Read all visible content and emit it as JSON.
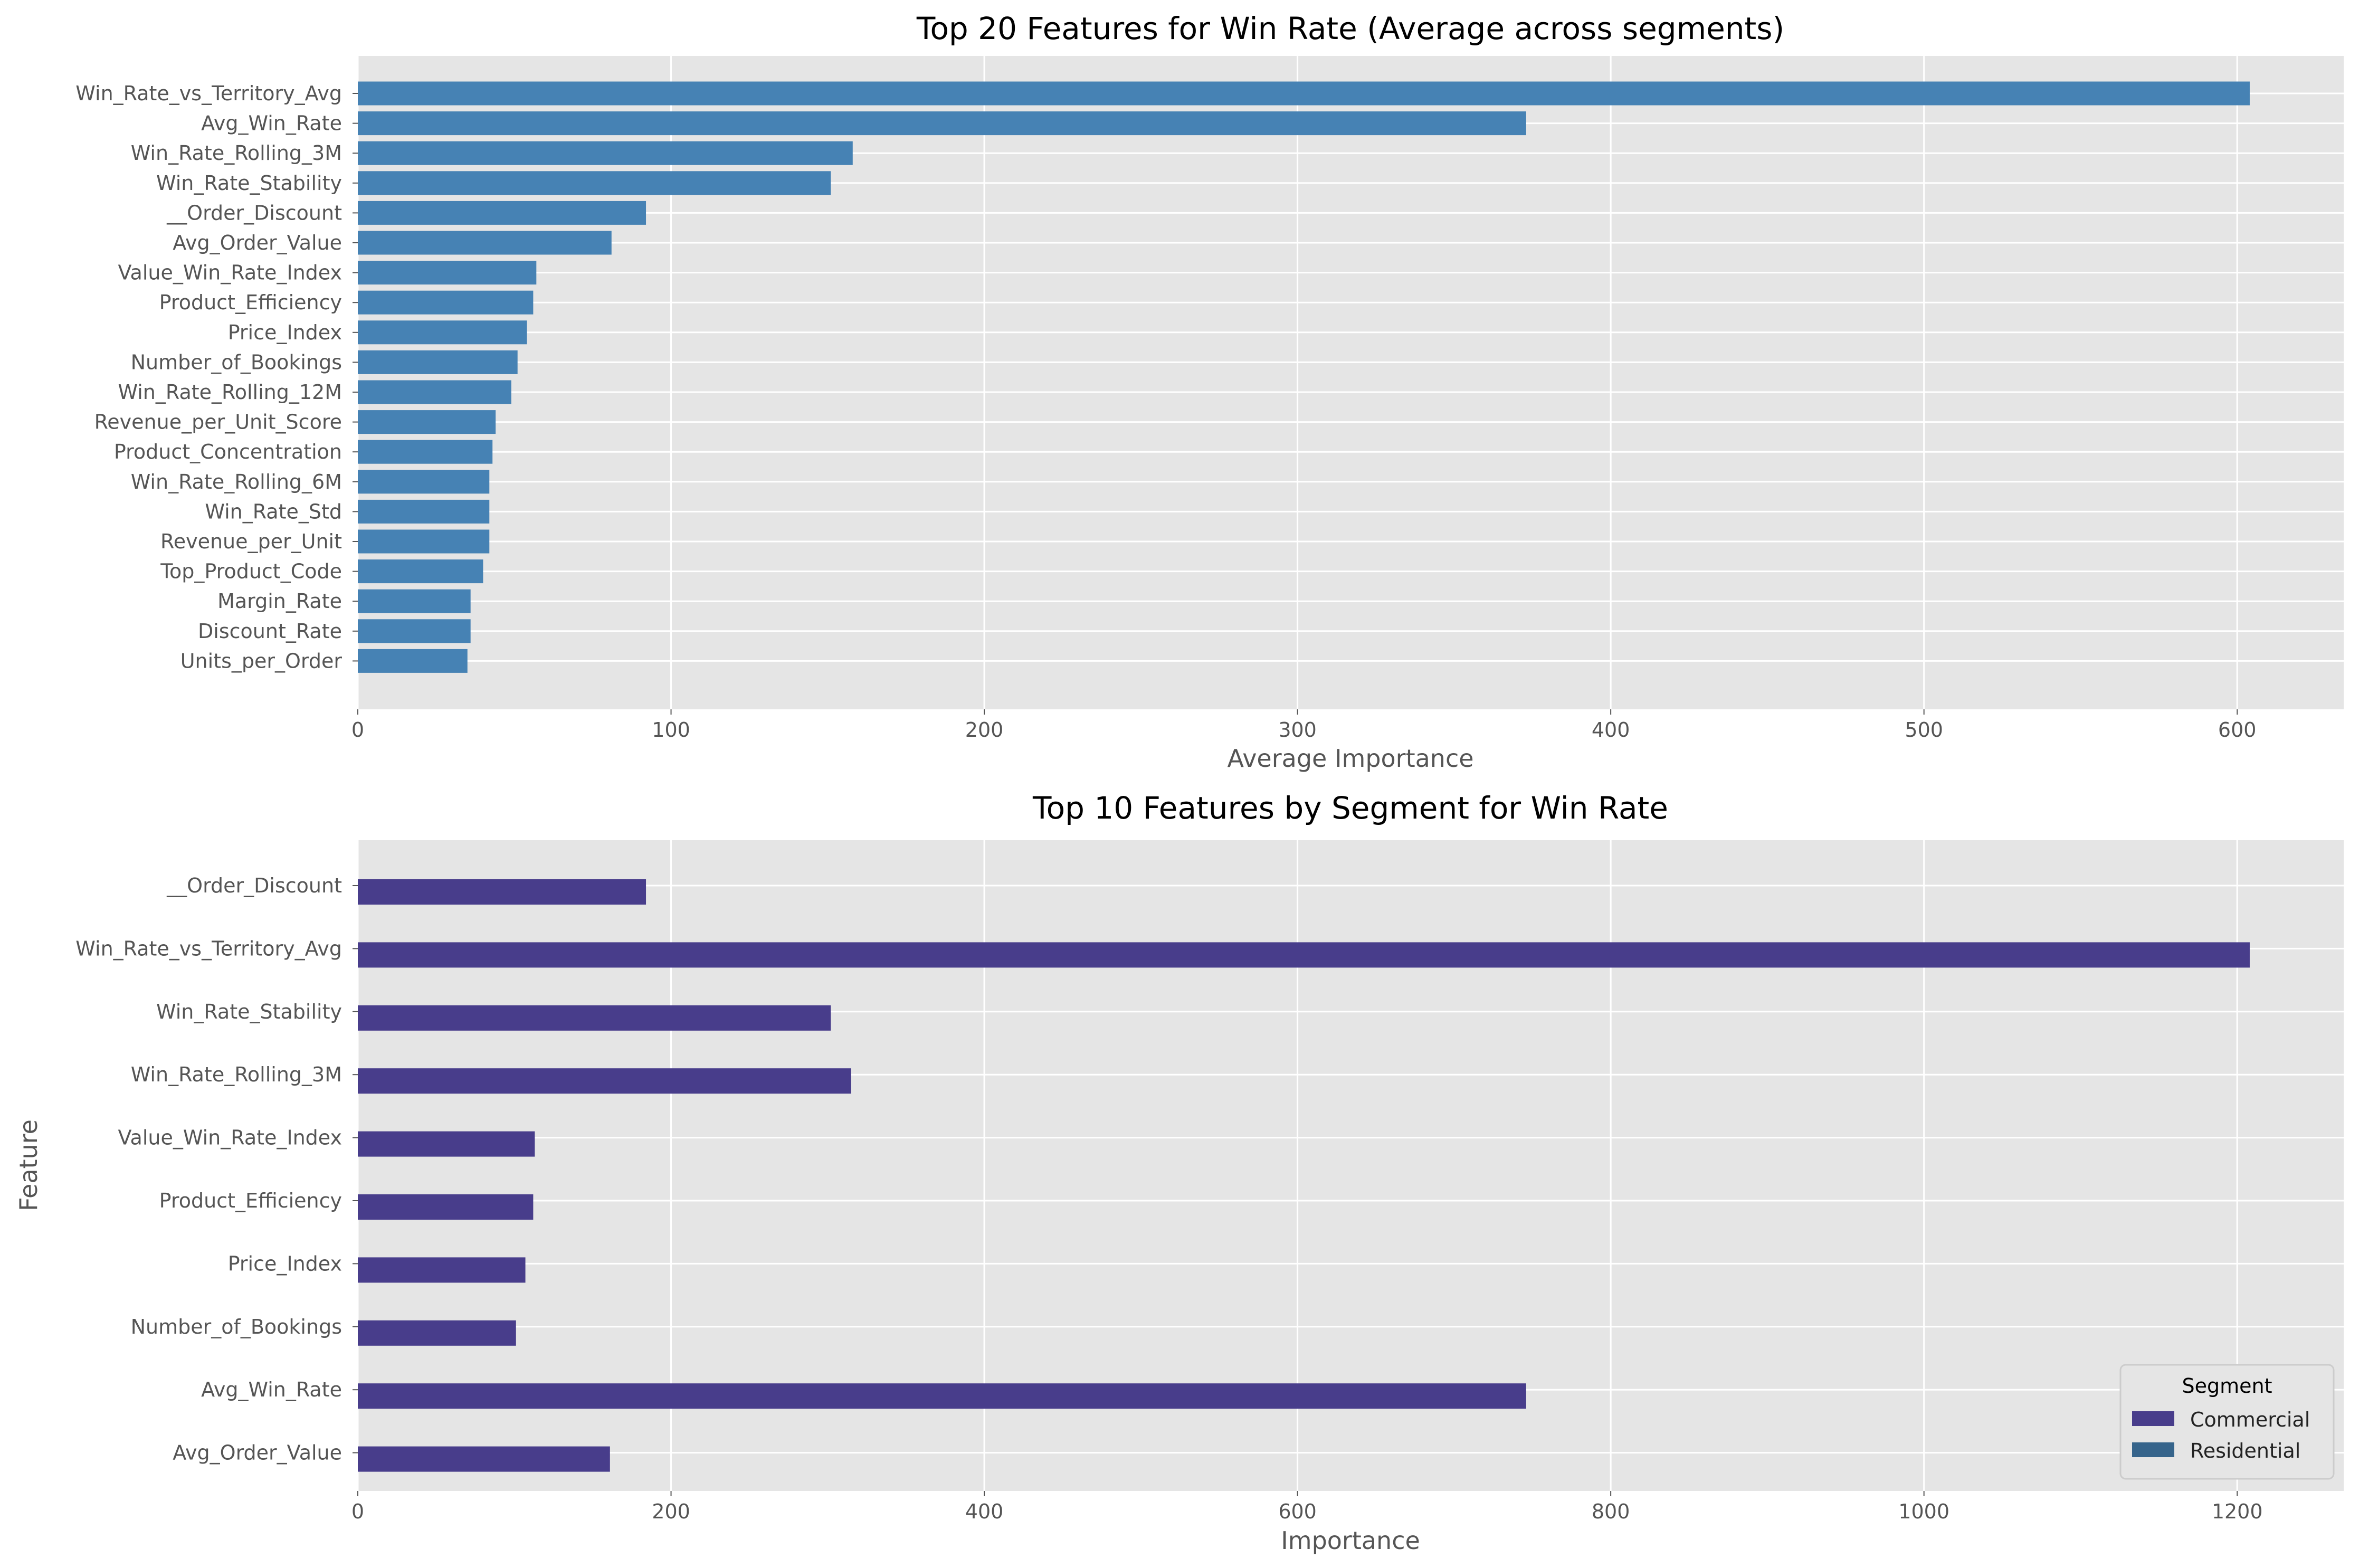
{
  "chart_data": [
    {
      "type": "bar",
      "orientation": "horizontal",
      "title": "Top 20 Features for Win Rate (Average across segments)",
      "xlabel": "Average Importance",
      "ylabel": "",
      "xlim": [
        0,
        634
      ],
      "xticks": [
        0,
        100,
        200,
        300,
        400,
        500,
        600
      ],
      "grid": true,
      "bar_color": "#4682b4",
      "categories": [
        "Win_Rate_vs_Territory_Avg",
        "Avg_Win_Rate",
        "Win_Rate_Rolling_3M",
        "Win_Rate_Stability",
        "__Order_Discount",
        "Avg_Order_Value",
        "Value_Win_Rate_Index",
        "Product_Efficiency",
        "Price_Index",
        "Number_of_Bookings",
        "Win_Rate_Rolling_12M",
        "Revenue_per_Unit_Score",
        "Product_Concentration",
        "Win_Rate_Rolling_6M",
        "Win_Rate_Std",
        "Revenue_per_Unit",
        "Top_Product_Code",
        "Margin_Rate",
        "Discount_Rate",
        "Units_per_Order"
      ],
      "values": [
        604,
        373,
        158,
        151,
        92,
        81,
        57,
        56,
        54,
        51,
        49,
        44,
        43,
        42,
        42,
        42,
        40,
        36,
        36,
        35
      ]
    },
    {
      "type": "bar",
      "orientation": "horizontal",
      "title": "Top 10 Features by Segment for Win Rate",
      "xlabel": "Importance",
      "ylabel": "Feature",
      "xlim": [
        0,
        1268
      ],
      "xticks": [
        0,
        200,
        400,
        600,
        800,
        1000,
        1200
      ],
      "grid": true,
      "categories": [
        "__Order_Discount",
        "Win_Rate_vs_Territory_Avg",
        "Win_Rate_Stability",
        "Win_Rate_Rolling_3M",
        "Value_Win_Rate_Index",
        "Product_Efficiency",
        "Price_Index",
        "Number_of_Bookings",
        "Avg_Win_Rate",
        "Avg_Order_Value"
      ],
      "series": [
        {
          "name": "Commercial",
          "color": "#483d8b",
          "values": [
            184,
            1208,
            302,
            315,
            113,
            112,
            107,
            101,
            746,
            161
          ]
        },
        {
          "name": "Residential",
          "color": "#36648b",
          "values": [
            0,
            0,
            0,
            0,
            0,
            0,
            0,
            0,
            0,
            0
          ]
        }
      ],
      "legend": {
        "title": "Segment",
        "placement": "lower-right"
      }
    }
  ]
}
